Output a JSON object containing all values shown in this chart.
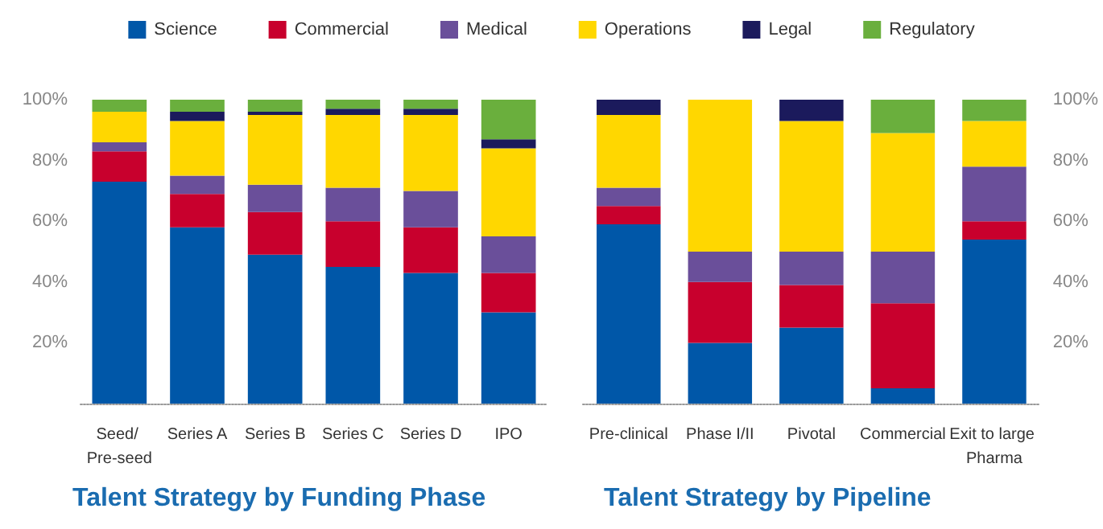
{
  "chart_data": [
    {
      "type": "bar",
      "stacked": true,
      "title": "Talent Strategy by Funding Phase",
      "categories": [
        "Seed/ Pre-seed",
        "Series A",
        "Series B",
        "Series C",
        "Series D",
        "IPO"
      ],
      "series": [
        {
          "name": "Science",
          "color": "#0057a8",
          "values": [
            73,
            58,
            49,
            45,
            43,
            30
          ]
        },
        {
          "name": "Commercial",
          "color": "#c8002d",
          "values": [
            10,
            11,
            14,
            15,
            15,
            13
          ]
        },
        {
          "name": "Medical",
          "color": "#6a4f9a",
          "values": [
            3,
            6,
            9,
            11,
            12,
            12
          ]
        },
        {
          "name": "Operations",
          "color": "#ffd700",
          "values": [
            10,
            18,
            23,
            24,
            25,
            29
          ]
        },
        {
          "name": "Legal",
          "color": "#1b1a5c",
          "values": [
            0,
            3,
            1,
            2,
            2,
            3
          ]
        },
        {
          "name": "Regulatory",
          "color": "#6aaf3d",
          "values": [
            4,
            4,
            4,
            3,
            3,
            13
          ]
        }
      ],
      "ylim": [
        0,
        100
      ],
      "yticks": [
        {
          "value": 20,
          "label": "20%"
        },
        {
          "value": 40,
          "label": "40%"
        },
        {
          "value": 60,
          "label": "60%"
        },
        {
          "value": 80,
          "label": "80%"
        },
        {
          "value": 100,
          "label": "100%"
        }
      ],
      "grid": false,
      "legend": "top"
    },
    {
      "type": "bar",
      "stacked": true,
      "title": "Talent Strategy by Pipeline",
      "categories": [
        "Pre-clinical",
        "Phase I/II",
        "Pivotal",
        "Commercial",
        "Exit to large Pharma"
      ],
      "series": [
        {
          "color": "#0057a8",
          "values": [
            59,
            20,
            25,
            5,
            54
          ]
        },
        {
          "color": "#c8002d",
          "values": [
            6,
            20,
            14,
            28,
            6
          ]
        },
        {
          "color": "#6a4f9a",
          "values": [
            6,
            10,
            11,
            17,
            18
          ]
        },
        {
          "color": "#ffd700",
          "values": [
            24,
            50,
            43,
            39,
            15
          ]
        },
        {
          "color": "#1b1a5c",
          "values": [
            5,
            0,
            7,
            0,
            0
          ]
        },
        {
          "color": "#6aaf3d",
          "values": [
            0,
            0,
            0,
            11,
            7
          ]
        }
      ],
      "ylim": [
        0,
        100
      ],
      "yticks": [
        {
          "value": 20,
          "label": "20%"
        },
        {
          "value": 40,
          "label": "40%"
        },
        {
          "value": 60,
          "label": "60%"
        },
        {
          "value": 80,
          "label": "80%"
        },
        {
          "value": 100,
          "label": "100%"
        }
      ],
      "grid": false,
      "legend": false
    }
  ]
}
